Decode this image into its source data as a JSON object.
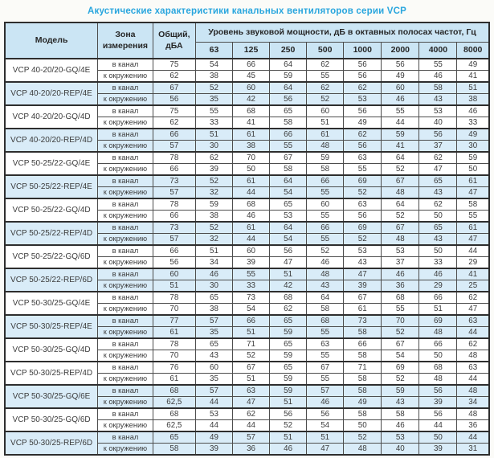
{
  "title": "Акустические характеристики канальных вентиляторов  серии VCP",
  "colors": {
    "title_blue": "#29a6de",
    "header_bg": "#cbe5f4",
    "row_alt_bg": "#d9ecf8",
    "border": "#2e2e2e"
  },
  "table": {
    "headers": {
      "model": "Модель",
      "zone": "Зона измерения",
      "total": "Общий, дБА",
      "spl": "Уровень звуковой мощности, дБ в октавных полосах частот, Гц",
      "frequencies": [
        "63",
        "125",
        "250",
        "500",
        "1000",
        "2000",
        "4000",
        "8000"
      ]
    },
    "zone_labels": [
      "в канал",
      "к окружению"
    ],
    "rows": [
      {
        "model": "VCP 40-20/20-GQ/4E",
        "shaded": false,
        "in_duct": {
          "total": "75",
          "bands": [
            "54",
            "66",
            "64",
            "62",
            "56",
            "56",
            "55",
            "49"
          ]
        },
        "to_surroundings": {
          "total": "62",
          "bands": [
            "38",
            "45",
            "59",
            "55",
            "56",
            "49",
            "46",
            "41"
          ]
        }
      },
      {
        "model": "VCP 40-20/20-REP/4E",
        "shaded": true,
        "in_duct": {
          "total": "67",
          "bands": [
            "52",
            "60",
            "64",
            "62",
            "62",
            "60",
            "58",
            "51"
          ]
        },
        "to_surroundings": {
          "total": "56",
          "bands": [
            "35",
            "42",
            "56",
            "52",
            "53",
            "46",
            "43",
            "38"
          ]
        }
      },
      {
        "model": "VCP 40-20/20-GQ/4D",
        "shaded": false,
        "in_duct": {
          "total": "75",
          "bands": [
            "55",
            "68",
            "65",
            "60",
            "56",
            "55",
            "53",
            "46"
          ]
        },
        "to_surroundings": {
          "total": "62",
          "bands": [
            "33",
            "41",
            "58",
            "51",
            "49",
            "44",
            "40",
            "33"
          ]
        }
      },
      {
        "model": "VCP 40-20/20-REP/4D",
        "shaded": true,
        "in_duct": {
          "total": "66",
          "bands": [
            "51",
            "61",
            "66",
            "61",
            "62",
            "59",
            "56",
            "49"
          ]
        },
        "to_surroundings": {
          "total": "57",
          "bands": [
            "30",
            "38",
            "55",
            "48",
            "56",
            "41",
            "37",
            "30"
          ]
        }
      },
      {
        "model": "VCP 50-25/22-GQ/4E",
        "shaded": false,
        "in_duct": {
          "total": "78",
          "bands": [
            "62",
            "70",
            "67",
            "59",
            "63",
            "64",
            "62",
            "59"
          ]
        },
        "to_surroundings": {
          "total": "66",
          "bands": [
            "39",
            "50",
            "58",
            "58",
            "55",
            "52",
            "47",
            "50"
          ]
        }
      },
      {
        "model": "VCP 50-25/22-REP/4E",
        "shaded": true,
        "in_duct": {
          "total": "73",
          "bands": [
            "52",
            "61",
            "64",
            "66",
            "69",
            "67",
            "65",
            "61"
          ]
        },
        "to_surroundings": {
          "total": "57",
          "bands": [
            "32",
            "44",
            "54",
            "55",
            "52",
            "48",
            "43",
            "47"
          ]
        }
      },
      {
        "model": "VCP 50-25/22-GQ/4D",
        "shaded": false,
        "in_duct": {
          "total": "78",
          "bands": [
            "59",
            "68",
            "65",
            "60",
            "63",
            "64",
            "62",
            "58"
          ]
        },
        "to_surroundings": {
          "total": "66",
          "bands": [
            "38",
            "46",
            "53",
            "55",
            "56",
            "52",
            "50",
            "55"
          ]
        }
      },
      {
        "model": "VCP 50-25/22-REP/4D",
        "shaded": true,
        "in_duct": {
          "total": "73",
          "bands": [
            "52",
            "61",
            "64",
            "66",
            "69",
            "67",
            "65",
            "61"
          ]
        },
        "to_surroundings": {
          "total": "57",
          "bands": [
            "32",
            "44",
            "54",
            "55",
            "52",
            "48",
            "43",
            "47"
          ]
        }
      },
      {
        "model": "VCP 50-25/22-GQ/6D",
        "shaded": false,
        "in_duct": {
          "total": "66",
          "bands": [
            "51",
            "60",
            "56",
            "52",
            "53",
            "53",
            "50",
            "44"
          ]
        },
        "to_surroundings": {
          "total": "56",
          "bands": [
            "34",
            "39",
            "47",
            "46",
            "43",
            "37",
            "33",
            "29"
          ]
        }
      },
      {
        "model": "VCP 50-25/22-REP/6D",
        "shaded": true,
        "in_duct": {
          "total": "60",
          "bands": [
            "46",
            "55",
            "51",
            "48",
            "47",
            "46",
            "46",
            "41"
          ]
        },
        "to_surroundings": {
          "total": "51",
          "bands": [
            "30",
            "33",
            "42",
            "43",
            "39",
            "36",
            "29",
            "25"
          ]
        }
      },
      {
        "model": "VCP 50-30/25-GQ/4E",
        "shaded": false,
        "in_duct": {
          "total": "78",
          "bands": [
            "65",
            "73",
            "68",
            "64",
            "67",
            "68",
            "66",
            "62"
          ]
        },
        "to_surroundings": {
          "total": "70",
          "bands": [
            "38",
            "54",
            "62",
            "58",
            "61",
            "55",
            "51",
            "47"
          ]
        }
      },
      {
        "model": "VCP 50-30/25-REP/4E",
        "shaded": true,
        "in_duct": {
          "total": "77",
          "bands": [
            "57",
            "66",
            "65",
            "68",
            "73",
            "70",
            "69",
            "63"
          ]
        },
        "to_surroundings": {
          "total": "61",
          "bands": [
            "35",
            "51",
            "59",
            "55",
            "58",
            "52",
            "48",
            "44"
          ]
        }
      },
      {
        "model": "VCP 50-30/25-GQ/4D",
        "shaded": false,
        "in_duct": {
          "total": "78",
          "bands": [
            "65",
            "71",
            "65",
            "63",
            "66",
            "67",
            "66",
            "62"
          ]
        },
        "to_surroundings": {
          "total": "70",
          "bands": [
            "43",
            "52",
            "59",
            "55",
            "58",
            "54",
            "50",
            "48"
          ]
        }
      },
      {
        "model": "VCP 50-30/25-REP/4D",
        "shaded": false,
        "in_duct": {
          "total": "76",
          "bands": [
            "60",
            "67",
            "65",
            "67",
            "71",
            "69",
            "68",
            "63"
          ]
        },
        "to_surroundings": {
          "total": "61",
          "bands": [
            "35",
            "51",
            "59",
            "55",
            "58",
            "52",
            "48",
            "44"
          ]
        }
      },
      {
        "model": "VCP 50-30/25-GQ/6E",
        "shaded": true,
        "in_duct": {
          "total": "68",
          "bands": [
            "57",
            "63",
            "59",
            "57",
            "58",
            "59",
            "56",
            "48"
          ]
        },
        "to_surroundings": {
          "total": "62,5",
          "bands": [
            "44",
            "47",
            "51",
            "46",
            "49",
            "43",
            "39",
            "34"
          ]
        }
      },
      {
        "model": "VCP 50-30/25-GQ/6D",
        "shaded": false,
        "in_duct": {
          "total": "68",
          "bands": [
            "53",
            "62",
            "56",
            "56",
            "58",
            "58",
            "56",
            "48"
          ]
        },
        "to_surroundings": {
          "total": "62,5",
          "bands": [
            "44",
            "44",
            "52",
            "54",
            "50",
            "46",
            "44",
            "36"
          ]
        }
      },
      {
        "model": "VCP 50-30/25-REP/6D",
        "shaded": true,
        "in_duct": {
          "total": "65",
          "bands": [
            "49",
            "57",
            "51",
            "51",
            "52",
            "53",
            "50",
            "44"
          ]
        },
        "to_surroundings": {
          "total": "58",
          "bands": [
            "39",
            "36",
            "46",
            "47",
            "48",
            "40",
            "39",
            "31"
          ]
        }
      }
    ]
  }
}
